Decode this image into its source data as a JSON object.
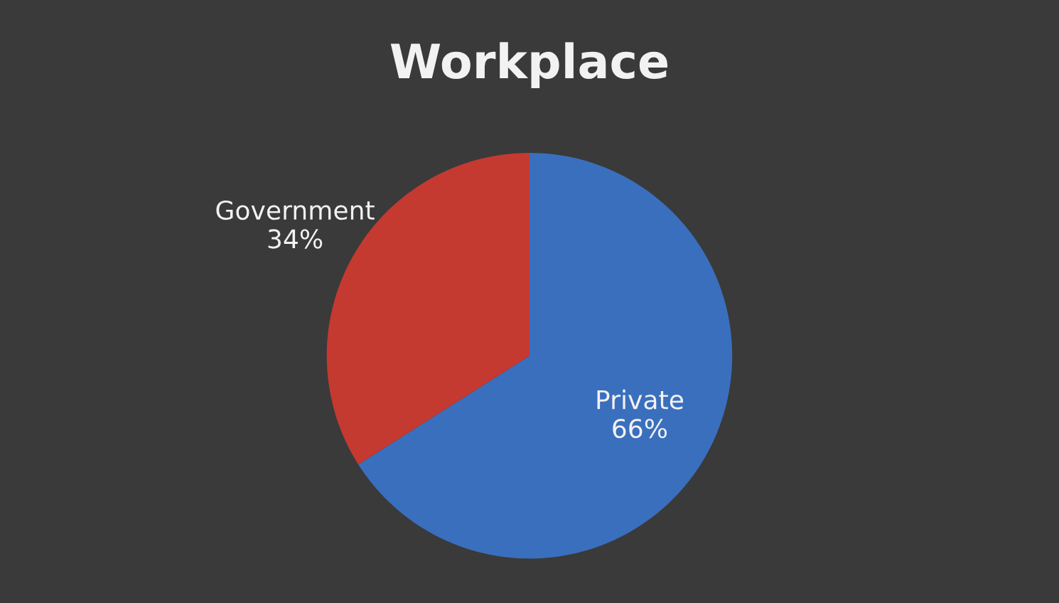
{
  "chart_data": {
    "type": "pie",
    "title": "Workplace",
    "categories": [
      "Private",
      "Government"
    ],
    "values": [
      66,
      34
    ],
    "value_labels": [
      "66%",
      "34%"
    ],
    "colors": [
      "#3a6fbe",
      "#c43a30"
    ]
  }
}
